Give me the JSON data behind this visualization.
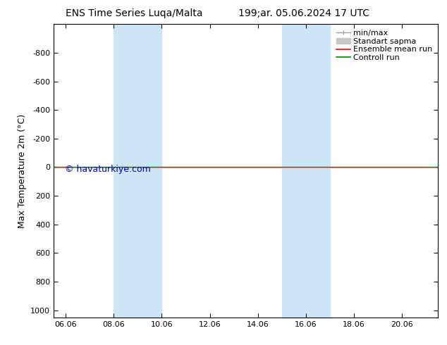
{
  "title": "ENS Time Series Luqa/Malta",
  "title2": "199;ar. 05.06.2024 17 UTC",
  "ylabel": "Max Temperature 2m (°C)",
  "watermark": "© havaturkiye.com",
  "ylim_top": -1000,
  "ylim_bottom": 1050,
  "yticks": [
    -800,
    -600,
    -400,
    -200,
    0,
    200,
    400,
    600,
    800,
    1000
  ],
  "xtick_labels": [
    "06.06",
    "08.06",
    "10.06",
    "12.06",
    "14.06",
    "16.06",
    "18.06",
    "20.06"
  ],
  "xtick_positions": [
    0,
    2,
    4,
    6,
    8,
    10,
    12,
    14
  ],
  "xlim_left": -0.5,
  "xlim_right": 15.5,
  "shaded_bands": [
    {
      "xmin": 2,
      "xmax": 4
    },
    {
      "xmin": 9,
      "xmax": 11
    }
  ],
  "shaded_color": "#cce6f5",
  "line_y": 0,
  "line_color_ensemble": "#ff0000",
  "line_color_control": "#008000",
  "legend_entries": [
    "min/max",
    "Standart sapma",
    "Ensemble mean run",
    "Controll run"
  ],
  "legend_colors": [
    "#a0a0a0",
    "#c8c8c8",
    "#ff0000",
    "#008000"
  ],
  "bg_color": "#ffffff",
  "font_size_title": 10,
  "font_size_axis": 9,
  "font_size_ticks": 8,
  "font_size_legend": 8,
  "font_size_watermark": 9,
  "watermark_color": "#0000bb"
}
